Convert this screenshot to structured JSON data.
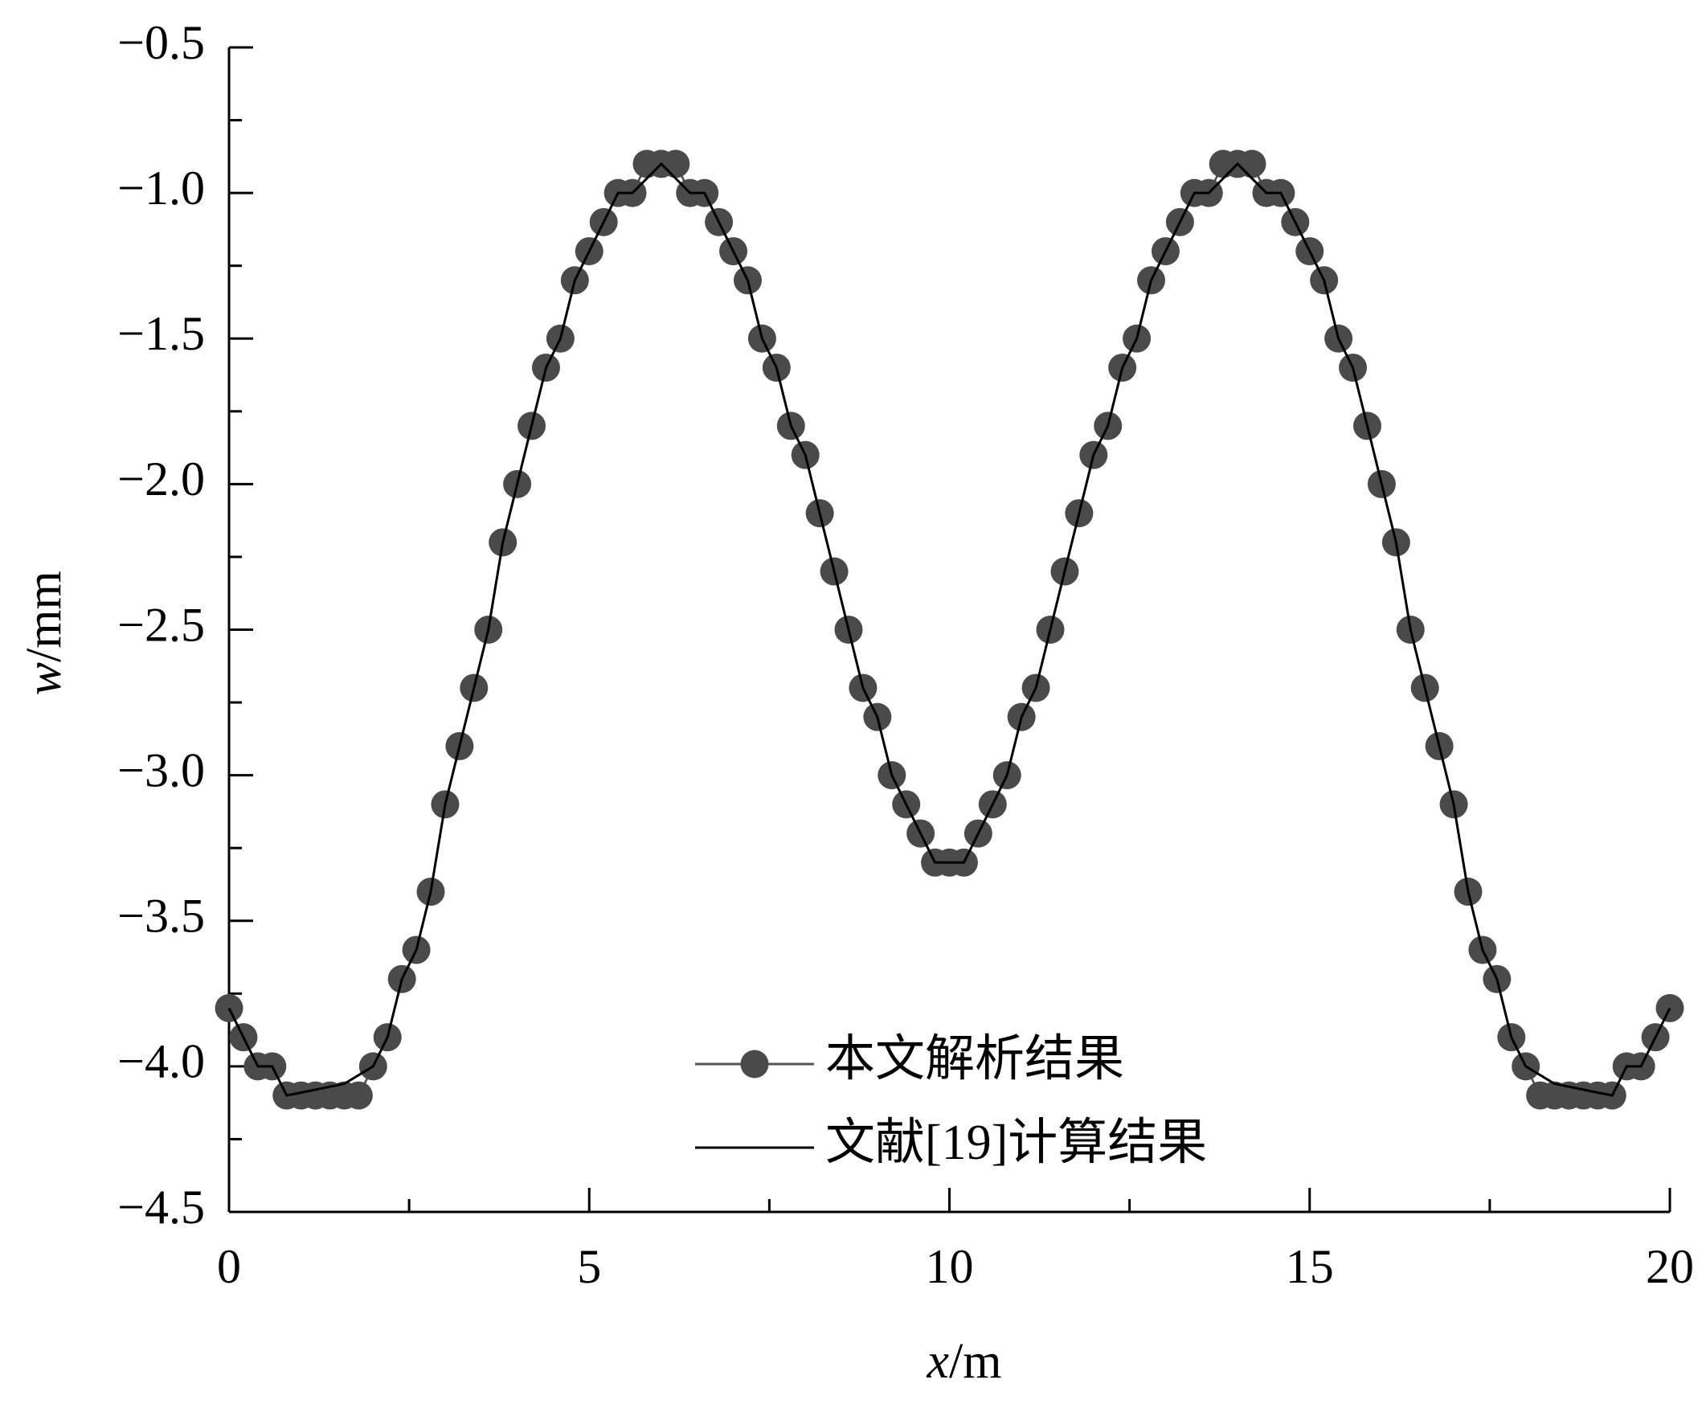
{
  "chart_data": {
    "type": "line",
    "ylabel_var": "w",
    "ylabel_unit": "/mm",
    "xlabel_var": "x",
    "xlabel_unit": "/m",
    "x": [
      0,
      0.2,
      0.4,
      0.6,
      0.8,
      1,
      1.2,
      1.4,
      1.6,
      1.8,
      2,
      2.2,
      2.4,
      2.6,
      2.8,
      3,
      3.2,
      3.4,
      3.6,
      3.8,
      4,
      4.2,
      4.4,
      4.6,
      4.8,
      5,
      5.2,
      5.4,
      5.6,
      5.8,
      6,
      6.2,
      6.4,
      6.6,
      6.8,
      7,
      7.2,
      7.4,
      7.6,
      7.8,
      8,
      8.2,
      8.4,
      8.6,
      8.8,
      9,
      9.2,
      9.4,
      9.6,
      9.8,
      10,
      10.2,
      10.4,
      10.6,
      10.8,
      11,
      11.2,
      11.4,
      11.6,
      11.8,
      12,
      12.2,
      12.4,
      12.6,
      12.8,
      13,
      13.2,
      13.4,
      13.6,
      13.8,
      14,
      14.2,
      14.4,
      14.6,
      14.8,
      15,
      15.2,
      15.4,
      15.6,
      15.8,
      16,
      16.2,
      16.4,
      16.6,
      16.8,
      17,
      17.2,
      17.4,
      17.6,
      17.8,
      18,
      18.2,
      18.4,
      18.6,
      18.8,
      19,
      19.2,
      19.4,
      19.6,
      19.8,
      20
    ],
    "series": [
      {
        "name": "本文解析结果",
        "color": "#4a4a4a",
        "marker": "circle",
        "values": [
          -3.8,
          -3.9,
          -4.0,
          -4.0,
          -4.1,
          -4.1,
          -4.1,
          -4.1,
          -4.1,
          -4.1,
          -4.0,
          -3.9,
          -3.7,
          -3.6,
          -3.4,
          -3.1,
          -2.9,
          -2.7,
          -2.5,
          -2.2,
          -2.0,
          -1.8,
          -1.6,
          -1.5,
          -1.3,
          -1.2,
          -1.1,
          -1.0,
          -1.0,
          -0.9,
          -0.9,
          -0.9,
          -1.0,
          -1.0,
          -1.1,
          -1.2,
          -1.3,
          -1.5,
          -1.6,
          -1.8,
          -1.9,
          -2.1,
          -2.3,
          -2.5,
          -2.7,
          -2.8,
          -3.0,
          -3.1,
          -3.2,
          -3.3,
          -3.3,
          -3.3,
          -3.2,
          -3.1,
          -3.0,
          -2.8,
          -2.7,
          -2.5,
          -2.3,
          -2.1,
          -1.9,
          -1.8,
          -1.6,
          -1.5,
          -1.3,
          -1.2,
          -1.1,
          -1.0,
          -1.0,
          -0.9,
          -0.9,
          -0.9,
          -1.0,
          -1.0,
          -1.1,
          -1.2,
          -1.3,
          -1.5,
          -1.6,
          -1.8,
          -2.0,
          -2.2,
          -2.5,
          -2.7,
          -2.9,
          -3.1,
          -3.4,
          -3.6,
          -3.7,
          -3.9,
          -4.0,
          -4.1,
          -4.1,
          -4.1,
          -4.1,
          -4.1,
          -4.1,
          -4.0,
          -4.0,
          -3.9,
          -3.8
        ]
      },
      {
        "name": "文献[19]计算结果",
        "color": "#000000",
        "marker": "none",
        "values": [
          -3.8,
          -3.9,
          -4.0,
          -4.0,
          -4.1,
          -4.09,
          -4.08,
          -4.07,
          -4.06,
          -4.03,
          -4.0,
          -3.9,
          -3.7,
          -3.6,
          -3.4,
          -3.1,
          -2.9,
          -2.7,
          -2.5,
          -2.2,
          -2.0,
          -1.8,
          -1.6,
          -1.5,
          -1.3,
          -1.2,
          -1.1,
          -1.0,
          -1.0,
          -0.95,
          -0.9,
          -0.95,
          -1.0,
          -1.0,
          -1.1,
          -1.2,
          -1.3,
          -1.5,
          -1.6,
          -1.8,
          -1.9,
          -2.1,
          -2.3,
          -2.5,
          -2.7,
          -2.8,
          -3.0,
          -3.1,
          -3.2,
          -3.3,
          -3.3,
          -3.3,
          -3.2,
          -3.1,
          -3.0,
          -2.8,
          -2.7,
          -2.5,
          -2.3,
          -2.1,
          -1.9,
          -1.8,
          -1.6,
          -1.5,
          -1.3,
          -1.2,
          -1.1,
          -1.0,
          -1.0,
          -0.95,
          -0.9,
          -0.95,
          -1.0,
          -1.0,
          -1.1,
          -1.2,
          -1.3,
          -1.5,
          -1.6,
          -1.8,
          -2.0,
          -2.2,
          -2.5,
          -2.7,
          -2.9,
          -3.1,
          -3.4,
          -3.6,
          -3.7,
          -3.9,
          -4.0,
          -4.03,
          -4.06,
          -4.07,
          -4.08,
          -4.09,
          -4.1,
          -4.0,
          -4.0,
          -3.9,
          -3.8
        ]
      }
    ],
    "xlim": [
      0,
      20
    ],
    "ylim": [
      -4.5,
      -0.5
    ],
    "xticks": [
      0,
      5,
      10,
      15,
      20
    ],
    "xminor_ticks": [
      2.5,
      7.5,
      12.5,
      17.5
    ],
    "yticks": [
      {
        "value": -0.5,
        "label": "−0.5"
      },
      {
        "value": -1.0,
        "label": "−1.0"
      },
      {
        "value": -1.5,
        "label": "−1.5"
      },
      {
        "value": -2.0,
        "label": "−2.0"
      },
      {
        "value": -2.5,
        "label": "−2.5"
      },
      {
        "value": -3.0,
        "label": "−3.0"
      },
      {
        "value": -3.5,
        "label": "−3.5"
      },
      {
        "value": -4.0,
        "label": "−4.0"
      },
      {
        "value": -4.5,
        "label": "−4.5"
      }
    ],
    "yminor_ticks": [
      -0.75,
      -1.25,
      -1.75,
      -2.25,
      -2.75,
      -3.25,
      -3.75,
      -4.25
    ],
    "grid": false,
    "legend": "lower center"
  }
}
